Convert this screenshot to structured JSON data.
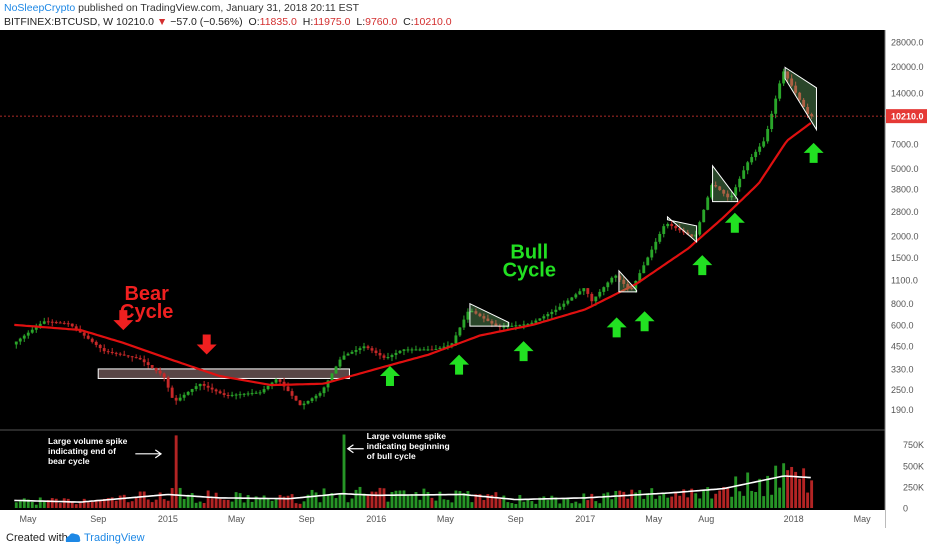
{
  "header": {
    "author": "NoSleepCrypto",
    "published": "published on TradingView.com, January 31, 2018 20:11 EST",
    "symbol": "BITFINEX:BTCUSD, W",
    "last": "10210.0",
    "change": "−57.0 (−0.56%)",
    "o_label": "O:",
    "o_val": "11835.0",
    "h_label": "H:",
    "h_val": "11975.0",
    "l_label": "L:",
    "l_val": "9760.0",
    "c_label": "C:",
    "c_val": "10210.0"
  },
  "footer": {
    "created_with": "Created with",
    "brand": "TradingView"
  },
  "colors": {
    "background": "#000000",
    "up": "#2aa52a",
    "down": "#c62828",
    "ma": "#e01010",
    "volume_ma": "#ffffff",
    "arrow_up": "#22e022",
    "arrow_down": "#f02020",
    "bull_text": "#22e022",
    "bear_text": "#f02020"
  },
  "chart_data": {
    "type": "candlestick",
    "price_scale": "log",
    "price_axis_ticks": [
      "28000.0",
      "20000.0",
      "14000.0",
      "10210.0",
      "7000.0",
      "5000.0",
      "3800.0",
      "2800.0",
      "2000.0",
      "1500.0",
      "1100.0",
      "800.0",
      "600.0",
      "450.0",
      "330.0",
      "250.0",
      "190.0"
    ],
    "price_tick_values": [
      28000,
      20000,
      14000,
      10210,
      7000,
      5000,
      3800,
      2800,
      2000,
      1500,
      1100,
      800,
      600,
      450,
      330,
      250,
      190
    ],
    "price_range": [
      150,
      32000
    ],
    "current_price_label": "10210.0",
    "volume_axis_ticks": [
      "750K",
      "500K",
      "250K",
      "0"
    ],
    "volume_tick_values": [
      750000,
      500000,
      250000,
      0
    ],
    "volume_range": [
      0,
      900000
    ],
    "x_axis_labels": [
      "May",
      "Sep",
      "2015",
      "May",
      "Sep",
      "2016",
      "May",
      "Sep",
      "2017",
      "May",
      "Aug",
      "2018",
      "May"
    ],
    "x_axis_dates": [
      "2014-05-01",
      "2014-09-01",
      "2015-01-01",
      "2015-05-01",
      "2015-09-01",
      "2016-01-01",
      "2016-05-01",
      "2016-09-01",
      "2017-01-01",
      "2017-05-01",
      "2017-08-01",
      "2018-01-01",
      "2018-05-01"
    ],
    "price_path_anchors": [
      [
        "2014-04-07",
        460
      ],
      [
        "2014-06-01",
        630
      ],
      [
        "2014-07-15",
        610
      ],
      [
        "2014-09-15",
        420
      ],
      [
        "2014-11-15",
        380
      ],
      [
        "2014-12-28",
        300
      ],
      [
        "2015-01-15",
        210
      ],
      [
        "2015-03-01",
        270
      ],
      [
        "2015-04-15",
        230
      ],
      [
        "2015-06-15",
        240
      ],
      [
        "2015-07-15",
        290
      ],
      [
        "2015-08-25",
        200
      ],
      [
        "2015-09-30",
        240
      ],
      [
        "2015-11-05",
        390
      ],
      [
        "2015-12-15",
        450
      ],
      [
        "2016-01-20",
        380
      ],
      [
        "2016-02-20",
        430
      ],
      [
        "2016-04-15",
        430
      ],
      [
        "2016-05-15",
        460
      ],
      [
        "2016-06-15",
        740
      ],
      [
        "2016-08-05",
        580
      ],
      [
        "2016-09-30",
        610
      ],
      [
        "2016-11-15",
        740
      ],
      [
        "2017-01-04",
        1000
      ],
      [
        "2017-01-15",
        820
      ],
      [
        "2017-02-25",
        1190
      ],
      [
        "2017-03-25",
        950
      ],
      [
        "2017-05-25",
        2400
      ],
      [
        "2017-07-15",
        1950
      ],
      [
        "2017-08-15",
        4100
      ],
      [
        "2017-09-15",
        3300
      ],
      [
        "2017-10-15",
        5400
      ],
      [
        "2017-11-15",
        7400
      ],
      [
        "2017-12-17",
        19000
      ],
      [
        "2018-01-31",
        10210
      ]
    ],
    "moving_average_anchors": [
      [
        "2014-04-07",
        600
      ],
      [
        "2014-08-01",
        560
      ],
      [
        "2014-10-15",
        470
      ],
      [
        "2015-01-01",
        380
      ],
      [
        "2015-04-01",
        300
      ],
      [
        "2015-07-01",
        265
      ],
      [
        "2015-10-01",
        270
      ],
      [
        "2016-01-01",
        330
      ],
      [
        "2016-04-01",
        400
      ],
      [
        "2016-07-01",
        520
      ],
      [
        "2016-10-01",
        600
      ],
      [
        "2017-01-01",
        740
      ],
      [
        "2017-04-01",
        1050
      ],
      [
        "2017-07-01",
        1700
      ],
      [
        "2017-09-01",
        2600
      ],
      [
        "2017-11-01",
        4100
      ],
      [
        "2017-12-20",
        7300
      ],
      [
        "2018-01-31",
        9300
      ]
    ],
    "volume_ma_anchors": [
      [
        "2014-04-07",
        90000
      ],
      [
        "2014-08-01",
        70000
      ],
      [
        "2015-01-01",
        160000
      ],
      [
        "2015-04-01",
        120000
      ],
      [
        "2015-08-01",
        110000
      ],
      [
        "2015-11-01",
        170000
      ],
      [
        "2016-01-01",
        150000
      ],
      [
        "2016-06-01",
        160000
      ],
      [
        "2016-09-01",
        100000
      ],
      [
        "2017-01-01",
        120000
      ],
      [
        "2017-06-01",
        180000
      ],
      [
        "2017-09-01",
        230000
      ],
      [
        "2017-12-15",
        380000
      ],
      [
        "2018-01-31",
        360000
      ]
    ],
    "volume_spikes": [
      {
        "date": "2015-01-12",
        "volume": 860000
      },
      {
        "date": "2015-11-02",
        "volume": 870000
      },
      {
        "date": "2017-12-10",
        "volume": 530000
      },
      {
        "date": "2018-01-15",
        "volume": 470000
      }
    ],
    "consolidation_box": {
      "start": "2014-09-01",
      "end": "2015-11-15",
      "low": 290,
      "high": 330
    },
    "trend_triangles": [
      {
        "start": "2016-06-13",
        "end": "2016-08-20",
        "top_start": 800,
        "top_end": 620,
        "bottom": 590
      },
      {
        "start": "2017-03-01",
        "end": "2017-04-01",
        "top_start": 1250,
        "top_end": 960,
        "bottom": 940
      },
      {
        "start": "2017-05-25",
        "end": "2017-07-15",
        "top_start": 2500,
        "top_end": 2300,
        "bottom_start": 2600,
        "bottom_end": 1850
      },
      {
        "start": "2017-08-12",
        "end": "2017-09-25",
        "top_start": 5200,
        "top_end": 3300,
        "bottom": 3200
      },
      {
        "start": "2017-12-17",
        "end": "2018-02-10",
        "top_start": 19800,
        "top_end": 15000,
        "bottom_start": 17000,
        "bottom_end": 8500
      }
    ],
    "annotations": [
      {
        "kind": "label",
        "text": "Bear",
        "date": "2014-11-25",
        "price": 840,
        "color": "bear"
      },
      {
        "kind": "label",
        "text": "Cycle",
        "date": "2014-11-25",
        "price": 660,
        "color": "bear"
      },
      {
        "kind": "label",
        "text": "Bull",
        "date": "2016-09-25",
        "price": 1480,
        "color": "bull"
      },
      {
        "kind": "label",
        "text": "Cycle",
        "date": "2016-09-25",
        "price": 1160,
        "color": "bull"
      },
      {
        "kind": "vol_note",
        "lines": [
          "Large volume spike",
          "indicating end of",
          "bear cycle"
        ],
        "date": "2014-06-05",
        "y_volume": 760000
      },
      {
        "kind": "vol_note",
        "lines": [
          "Large volume spike",
          "indicating beginning",
          "of bull cycle"
        ],
        "date": "2015-12-15",
        "y_volume": 820000
      }
    ],
    "down_arrows": [
      {
        "date": "2014-10-15",
        "price": 640
      },
      {
        "date": "2015-03-10",
        "price": 460
      }
    ],
    "up_arrows": [
      {
        "date": "2016-01-25",
        "price": 300
      },
      {
        "date": "2016-05-25",
        "price": 350
      },
      {
        "date": "2016-09-15",
        "price": 420
      },
      {
        "date": "2017-02-25",
        "price": 580
      },
      {
        "date": "2017-04-15",
        "price": 630
      },
      {
        "date": "2017-07-25",
        "price": 1350
      },
      {
        "date": "2017-09-20",
        "price": 2400
      },
      {
        "date": "2018-02-05",
        "price": 6200
      }
    ],
    "x_range": [
      "2014-03-20",
      "2018-06-10"
    ]
  }
}
